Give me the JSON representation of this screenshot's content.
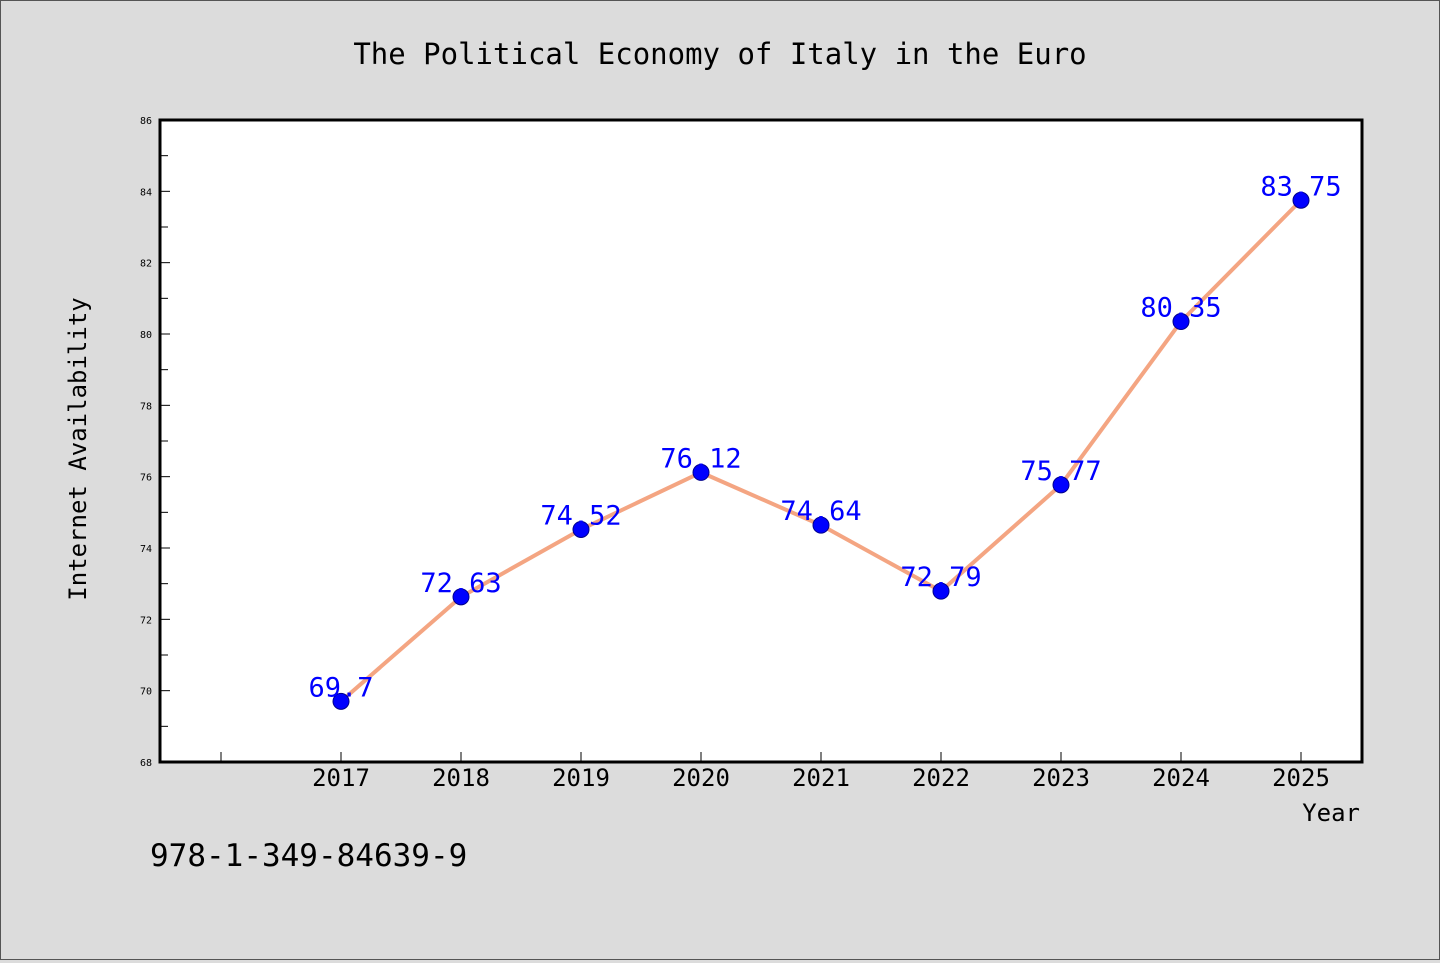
{
  "chart_data": {
    "type": "line",
    "title": "The Political Economy of Italy in the Euro",
    "xlabel": "Year",
    "ylabel": "Internet Availability",
    "categories": [
      "2017",
      "2018",
      "2019",
      "2020",
      "2021",
      "2022",
      "2023",
      "2024",
      "2025"
    ],
    "series": [
      {
        "values": [
          69.7,
          72.63,
          74.52,
          76.12,
          74.64,
          72.79,
          75.77,
          80.35,
          83.75
        ],
        "labels": [
          "69.7",
          "72.63",
          "74.52",
          "76.12",
          "74.64",
          "72.79",
          "75.77",
          "80.35",
          "83.75"
        ]
      }
    ],
    "ylim": [
      68,
      86
    ],
    "yticks": [
      "68",
      "70",
      "72",
      "74",
      "76",
      "78",
      "80",
      "82",
      "84",
      "86"
    ],
    "grid": false,
    "colors": {
      "background": "#dcdcdc",
      "plot_background": "#ffffff",
      "line": "#f4a582",
      "marker": "#0000ff",
      "data_label": "#0000ff"
    }
  },
  "footer": {
    "isbn": "978-1-349-84639-9"
  }
}
